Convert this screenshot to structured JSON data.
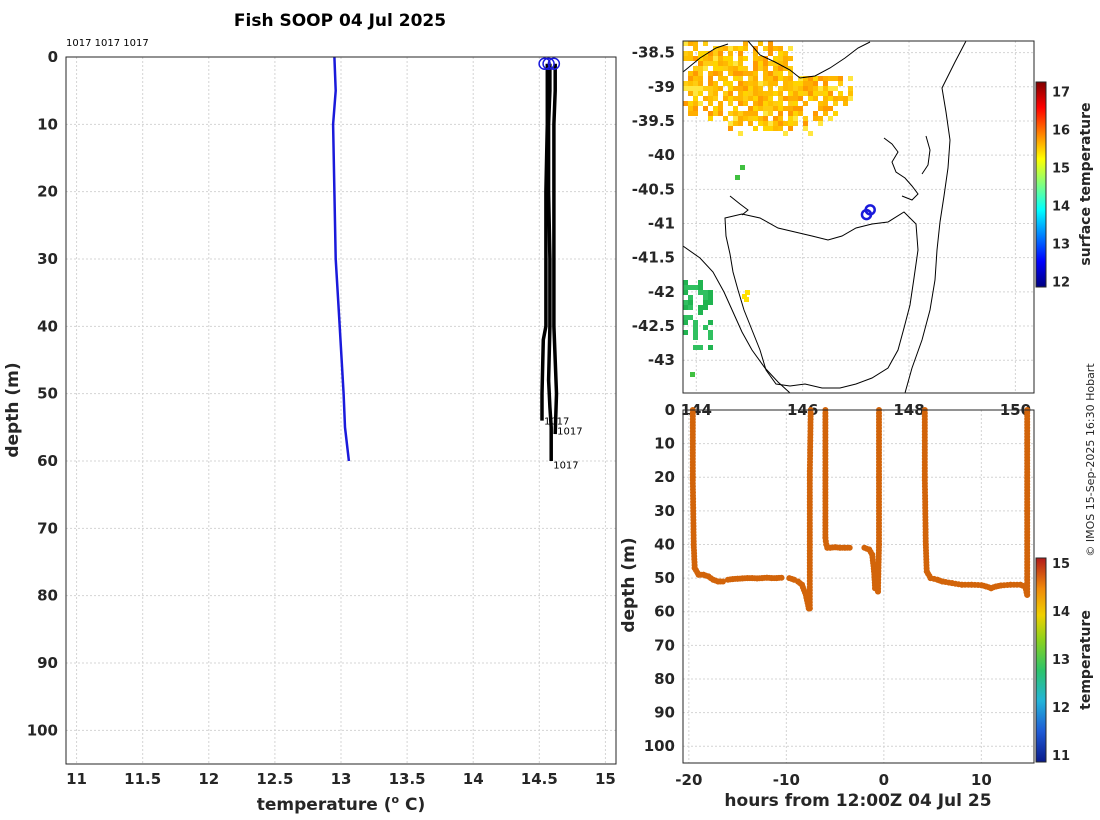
{
  "chart_data": [
    {
      "type": "line",
      "id": "profile",
      "title": "Fish SOOP 04 Jul 2025",
      "xlabel": "temperature (",
      "xlabel_sup": "o",
      "xlabel_tail": " C)",
      "ylabel": "depth (m)",
      "xlim": [
        10.92,
        15.08
      ],
      "ylim": [
        105,
        0
      ],
      "x_ticks": [
        "11",
        "11.5",
        "12",
        "12.5",
        "13",
        "13.5",
        "14",
        "14.5",
        "15"
      ],
      "y_ticks": [
        "0",
        "10",
        "20",
        "30",
        "40",
        "50",
        "60",
        "70",
        "80",
        "90",
        "100"
      ],
      "top_label": "1017 1017 1017",
      "series": [
        {
          "name": "blue",
          "color": "#1a1adb",
          "x": [
            12.95,
            12.96,
            12.94,
            12.95,
            12.96,
            12.99,
            13.02,
            13.03,
            13.06
          ],
          "y": [
            0,
            5,
            10,
            20,
            30,
            40,
            50,
            55,
            60
          ]
        },
        {
          "name": "1017-a",
          "color": "#000000",
          "x": [
            14.56,
            14.56,
            14.55,
            14.55,
            14.55,
            14.54,
            14.53,
            14.52,
            14.52
          ],
          "y": [
            1,
            10,
            20,
            30,
            40,
            41,
            42,
            50,
            54
          ]
        },
        {
          "name": "1017-b",
          "color": "#000000",
          "x": [
            14.62,
            14.62,
            14.61,
            14.61,
            14.61,
            14.61,
            14.62,
            14.63,
            14.62
          ],
          "y": [
            1,
            5,
            10,
            20,
            30,
            40,
            45,
            50,
            56
          ]
        },
        {
          "name": "1017-c",
          "color": "#000000",
          "x": [
            14.58,
            14.58,
            14.57,
            14.57,
            14.58,
            14.58,
            14.57,
            14.58,
            14.59,
            14.59
          ],
          "y": [
            1,
            5,
            10,
            20,
            30,
            40,
            48,
            52,
            55,
            60
          ]
        }
      ],
      "markers": [
        {
          "x": 14.54,
          "y": 1
        },
        {
          "x": 14.57,
          "y": 1
        },
        {
          "x": 14.61,
          "y": 1
        }
      ],
      "end_labels": [
        {
          "text": "1017",
          "x": 14.52,
          "y": 54
        },
        {
          "text": "1017",
          "x": 14.62,
          "y": 55.5
        },
        {
          "text": "1017",
          "x": 14.59,
          "y": 60.5
        }
      ]
    },
    {
      "type": "heatmap",
      "id": "map",
      "x_ticks": [
        "144",
        "146",
        "148",
        "150"
      ],
      "y_ticks": [
        "-38.5",
        "-39",
        "-39.5",
        "-40",
        "-40.5",
        "-41",
        "-41.5",
        "-42",
        "-42.5",
        "-43"
      ],
      "xlim": [
        143.75,
        150.35
      ],
      "ylim": [
        -43.48,
        -38.33
      ],
      "colorbar": {
        "label": "surface temperature",
        "ticks": [
          "12",
          "13",
          "14",
          "15",
          "16",
          "17"
        ],
        "range": [
          11.85,
          17.25
        ]
      },
      "vessel_track": [
        {
          "lon": 147.2,
          "lat": -40.87
        },
        {
          "lon": 147.27,
          "lat": -40.8
        }
      ]
    },
    {
      "type": "scatter",
      "id": "timeseries",
      "xlabel": "hours from 12:00Z 04 Jul 25",
      "ylabel": "depth (m)",
      "xlim": [
        -20.6,
        15.4
      ],
      "ylim": [
        105,
        0
      ],
      "x_ticks": [
        "-20",
        "-10",
        "0",
        "10"
      ],
      "y_ticks": [
        "0",
        "10",
        "20",
        "30",
        "40",
        "50",
        "60",
        "70",
        "80",
        "90",
        "100"
      ],
      "colorbar": {
        "label": "temperature",
        "ticks": [
          "11",
          "12",
          "13",
          "14",
          "15"
        ],
        "range": [
          10.85,
          15.1
        ]
      },
      "point_color": "#d2640a",
      "segments": [
        {
          "x": [
            -19.6,
            -19.6,
            -19.5,
            -19.4,
            -19.0,
            -18.5,
            -18.0,
            -17.5,
            -17.0,
            -16.5
          ],
          "y": [
            0,
            20,
            40,
            47,
            49,
            49,
            49.5,
            50.5,
            51,
            51
          ]
        },
        {
          "x": [
            -16.0,
            -15.5,
            -15.0,
            -14.5,
            -14.0,
            -13.5,
            -13.0,
            -12.5,
            -12.0,
            -11.5,
            -11.0,
            -10.5
          ],
          "y": [
            50.5,
            50.3,
            50.2,
            50.1,
            50,
            50,
            50.1,
            50,
            49.9,
            50,
            50,
            49.9
          ]
        },
        {
          "x": [
            -9.7,
            -9.2,
            -8.8,
            -8.4,
            -8.0,
            -7.7,
            -7.6,
            -7.6,
            -7.6,
            -7.5
          ],
          "y": [
            50,
            50.5,
            51,
            52,
            55,
            59,
            59,
            40,
            20,
            0
          ]
        },
        {
          "x": [
            -6.0,
            -6.0,
            -6.0,
            -5.9,
            -5.8,
            -5.5,
            -5.0,
            -4.5,
            -4.0,
            -3.5
          ],
          "y": [
            0,
            20,
            38,
            40,
            41,
            41,
            40.8,
            41,
            41,
            41
          ]
        },
        {
          "x": [
            -2.0,
            -1.5,
            -1.2,
            -1.0,
            -0.9,
            -0.6,
            -0.5,
            -0.5,
            -0.5
          ],
          "y": [
            41,
            41.5,
            43,
            48,
            53,
            54,
            40,
            20,
            0
          ]
        },
        {
          "x": [
            4.2,
            4.2,
            4.3,
            4.4,
            4.8,
            5.5,
            6.0,
            7.0,
            8.0,
            9.0,
            10.0,
            10.5,
            11.0,
            11.5,
            12.0,
            13.0,
            14.0,
            14.5,
            14.7,
            14.7,
            14.7
          ],
          "y": [
            0,
            20,
            40,
            48,
            50,
            50.5,
            51,
            51.5,
            52,
            52,
            52.1,
            52.5,
            53,
            52.5,
            52.2,
            52,
            52,
            52.5,
            55,
            30,
            0
          ]
        }
      ]
    }
  ],
  "credit": "© IMOS 15-Sep-2025 16:30 Hobart"
}
